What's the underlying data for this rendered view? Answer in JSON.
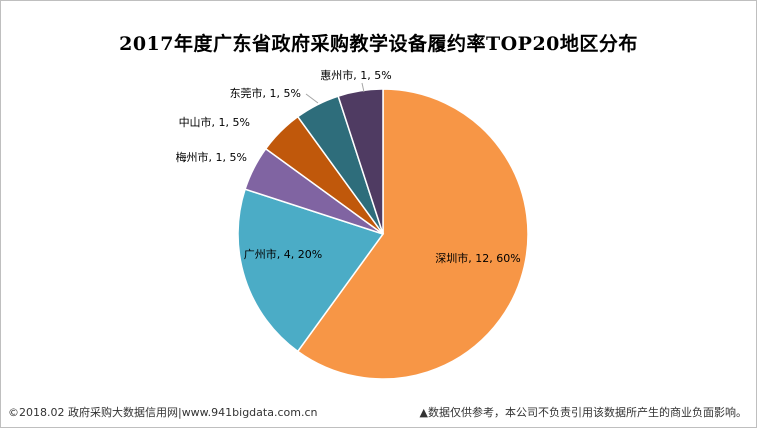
{
  "chart_data": {
    "type": "pie",
    "title": "2017年度广东省政府采购教学设备履约率TOP20地区分布",
    "slices": [
      {
        "name": "深圳市",
        "value": 12,
        "percent": "60%",
        "label": "深圳市, 12, 60%",
        "color": "#F79646"
      },
      {
        "name": "广州市",
        "value": 4,
        "percent": "20%",
        "label": "广州市, 4, 20%",
        "color": "#4BACC6"
      },
      {
        "name": "梅州市",
        "value": 1,
        "percent": "5%",
        "label": "梅州市, 1, 5%",
        "color": "#8064A2"
      },
      {
        "name": "中山市",
        "value": 1,
        "percent": "5%",
        "label": "中山市, 1, 5%",
        "color": "#C0580B"
      },
      {
        "name": "东莞市",
        "value": 1,
        "percent": "5%",
        "label": "东莞市, 1, 5%",
        "color": "#2E6D7B"
      },
      {
        "name": "惠州市",
        "value": 1,
        "percent": "5%",
        "label": "惠州市, 1, 5%",
        "color": "#4F3B62"
      }
    ],
    "legend": "none"
  },
  "footer": {
    "source": "©2018.02 政府采购大数据信用网|www.941bigdata.com.cn",
    "disclaimer": "▲数据仅供参考，本公司不负责引用该数据所产生的商业负面影响。"
  }
}
